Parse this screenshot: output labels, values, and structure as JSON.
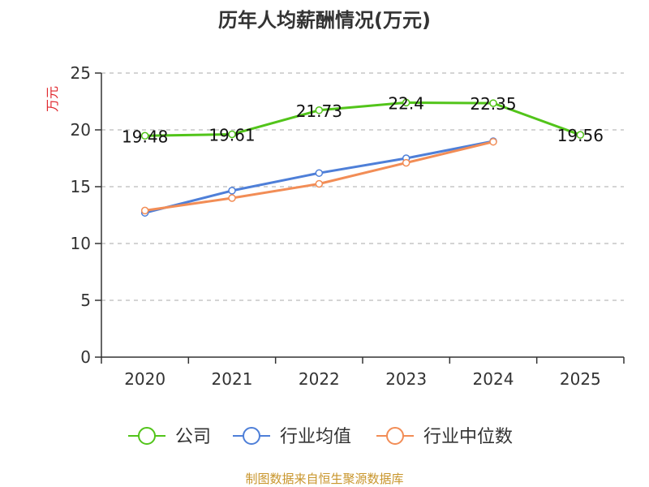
{
  "chart_data": {
    "type": "line",
    "title": "历年人均薪酬情况(万元)",
    "ylabel": "万元",
    "xlabel": "",
    "ylim": [
      0,
      25
    ],
    "yticks": [
      0,
      5,
      10,
      15,
      20,
      25
    ],
    "categories": [
      "2020",
      "2021",
      "2022",
      "2023",
      "2024",
      "2025"
    ],
    "grid": true,
    "legend_position": "bottom-center",
    "series": [
      {
        "name": "公司",
        "color": "#52c41a",
        "values": [
          19.48,
          19.61,
          21.73,
          22.4,
          22.35,
          19.56
        ],
        "labels": [
          "19.48",
          "19.61",
          "21.73",
          "22.4",
          "22.35",
          "19.56"
        ]
      },
      {
        "name": "行业均值",
        "color": "#4e7fd8",
        "values": [
          12.7,
          14.65,
          16.2,
          17.5,
          19.0,
          null
        ]
      },
      {
        "name": "行业中位数",
        "color": "#f28d56",
        "values": [
          12.9,
          14.0,
          15.25,
          17.1,
          18.95,
          null
        ]
      }
    ],
    "source": "制图数据来自恒生聚源数据库"
  },
  "colors": {
    "axis": "#333333",
    "grid": "#bbbbbb",
    "ylabel": "#e0282e",
    "source": "#c8952b"
  }
}
